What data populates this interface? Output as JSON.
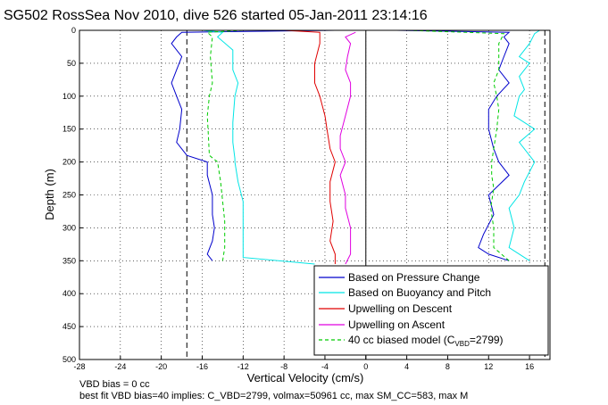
{
  "chart_data": {
    "type": "line",
    "title": "SG502 RossSea Nov 2010, dive 526 started 05-Jan-2011 23:14:16",
    "xlabel": "Vertical Velocity (cm/s)",
    "ylabel": "Depth (m)",
    "xlim": [
      -28,
      18
    ],
    "ylim": [
      0,
      500
    ],
    "y_reversed": true,
    "grid": true,
    "legend_position": "bottom-right",
    "xticks": [
      "-28",
      "-24",
      "-20",
      "-16",
      "-12",
      "-8",
      "-4",
      "0",
      "4",
      "8",
      "12",
      "16"
    ],
    "yticks": [
      "0",
      "50",
      "100",
      "150",
      "200",
      "250",
      "300",
      "350",
      "400",
      "450",
      "500"
    ],
    "vlines": [
      -17.5,
      0,
      17.5
    ],
    "colors": {
      "pressure": "#0000cc",
      "buoyancy": "#00e5e5",
      "upwell_descent": "#e00000",
      "upwell_ascent": "#e000e0",
      "model": "#00cc00"
    },
    "legend": [
      "Based on Pressure Change",
      "Based on Buoyancy and Pitch",
      "Upwelling on Descent",
      "Upwelling on Ascent",
      "40 cc biased model (C",
      "VBD",
      "=2799)"
    ],
    "series": [
      {
        "name": "Based on Pressure Change (descent)",
        "color": "#0000cc",
        "depth": [
          0,
          3,
          10,
          20,
          40,
          60,
          80,
          100,
          120,
          150,
          170,
          190,
          200,
          220,
          250,
          280,
          300,
          320,
          340,
          350
        ],
        "velocity": [
          -3,
          -18,
          -18.5,
          -19,
          -18,
          -18.5,
          -19,
          -18.5,
          -18,
          -18.2,
          -18.5,
          -17.5,
          -15.5,
          -15.5,
          -15,
          -15,
          -14.8,
          -15,
          -15.5,
          -15
        ]
      },
      {
        "name": "Based on Buoyancy and Pitch (descent)",
        "color": "#00e5e5",
        "depth": [
          0,
          3,
          10,
          30,
          60,
          80,
          100,
          140,
          170,
          195,
          200,
          230,
          260,
          290,
          320,
          345,
          355
        ],
        "velocity": [
          -16,
          -14,
          -14.5,
          -13,
          -13,
          -12.5,
          -12.8,
          -13,
          -13,
          -12.8,
          -12.8,
          -12.5,
          -12,
          -12,
          -12,
          -12,
          -5
        ]
      },
      {
        "name": "Upwelling on Descent",
        "color": "#e00000",
        "depth": [
          0,
          3,
          20,
          50,
          80,
          100,
          130,
          150,
          180,
          200,
          230,
          260,
          290,
          320,
          340,
          355
        ],
        "velocity": [
          -8,
          -4.5,
          -4.5,
          -5,
          -5,
          -4.5,
          -4,
          -3.8,
          -3.5,
          -3,
          -3.5,
          -3.5,
          -3.2,
          -3.5,
          -3,
          -3
        ]
      },
      {
        "name": "40 cc biased model (descent)",
        "color": "#00cc00",
        "depth": [
          0,
          3,
          10,
          40,
          80,
          100,
          130,
          160,
          190,
          200,
          230,
          260,
          290,
          330,
          350
        ],
        "velocity": [
          -12,
          -15.5,
          -15,
          -15.2,
          -15,
          -15.3,
          -15.5,
          -15.4,
          -15.3,
          -14.5,
          -14.2,
          -14,
          -13.8,
          -13.8,
          -14
        ]
      },
      {
        "name": "Based on Pressure Change (ascent)",
        "color": "#0000cc",
        "depth": [
          350,
          340,
          330,
          310,
          280,
          250,
          220,
          200,
          180,
          150,
          120,
          100,
          80,
          60,
          40,
          20,
          10,
          3,
          0
        ],
        "velocity": [
          14,
          12,
          11,
          11.5,
          12.5,
          12,
          14,
          13,
          12.5,
          12,
          12,
          12.8,
          14,
          13,
          13.5,
          14,
          13.5,
          14,
          3
        ]
      },
      {
        "name": "Based on Buoyancy and Pitch (ascent)",
        "color": "#00e5e5",
        "depth": [
          350,
          330,
          300,
          270,
          250,
          230,
          200,
          170,
          150,
          130,
          100,
          90,
          70,
          50,
          40,
          20,
          5,
          0
        ],
        "velocity": [
          16,
          14,
          14.5,
          14,
          15,
          15.5,
          16.5,
          15,
          16.5,
          14.5,
          15,
          15.5,
          15,
          16,
          15,
          16,
          16.5,
          17
        ]
      },
      {
        "name": "Upwelling on Ascent",
        "color": "#e000e0",
        "depth": [
          355,
          340,
          320,
          300,
          270,
          250,
          220,
          200,
          180,
          160,
          130,
          100,
          80,
          60,
          40,
          20,
          10,
          3
        ],
        "velocity": [
          -2,
          -1.5,
          -1.5,
          -1.5,
          -2,
          -2,
          -2.5,
          -2,
          -2.5,
          -2.5,
          -2,
          -1.5,
          -1.5,
          -2,
          -1.8,
          -1.5,
          -2,
          -1
        ]
      },
      {
        "name": "40 cc biased model (ascent)",
        "color": "#00cc00",
        "depth": [
          350,
          330,
          300,
          270,
          240,
          220,
          200,
          180,
          150,
          120,
          100,
          80,
          60,
          40,
          20,
          5,
          0
        ],
        "velocity": [
          14,
          12.5,
          12.5,
          12.2,
          12.5,
          12.3,
          12.3,
          12.5,
          12.8,
          13,
          12.8,
          12.5,
          13,
          13,
          13,
          13.5,
          4
        ]
      }
    ]
  },
  "footer": {
    "line1": "VBD bias = 0 cc",
    "line2": "best fit VBD bias=40 implies: C_VBD=2799, volmax=50961 cc, max SM_CC=583, max M"
  }
}
